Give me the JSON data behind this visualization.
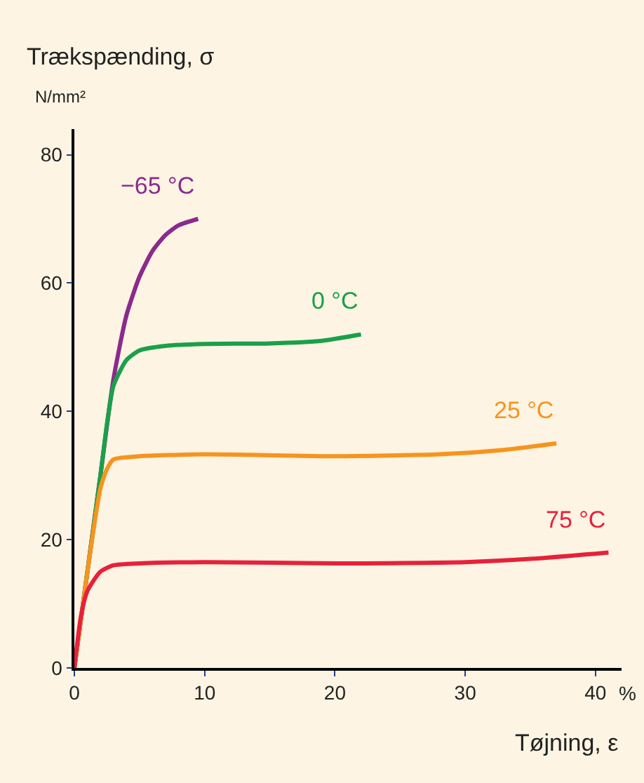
{
  "chart_data": {
    "type": "line",
    "ylabel": "Trækspænding, σ",
    "xlabel": "Tøjning, ε",
    "annotations": [
      "N/mm²",
      "%"
    ],
    "xlim": [
      0,
      42
    ],
    "ylim": [
      0,
      84
    ],
    "xticks": [
      0,
      10,
      20,
      30,
      40
    ],
    "yticks": [
      0,
      20,
      40,
      60,
      80
    ],
    "grid": false,
    "legend": false,
    "marker": "none",
    "line_style": "solid",
    "series": [
      {
        "name": "−65 °C",
        "color": "#8b2a8c",
        "x": [
          0,
          1,
          2,
          3,
          4,
          5,
          6,
          7,
          8,
          9.5
        ],
        "values": [
          0,
          15,
          30,
          45,
          55,
          61,
          65,
          67.5,
          69,
          70
        ]
      },
      {
        "name": "0 °C",
        "color": "#1aa04a",
        "x": [
          0,
          1,
          2,
          2.5,
          3,
          4,
          5,
          7,
          10,
          15,
          19,
          22
        ],
        "values": [
          0,
          15,
          30,
          38,
          44,
          48,
          49.5,
          50.2,
          50.5,
          50.6,
          51,
          52
        ]
      },
      {
        "name": "25 °C",
        "color": "#f7941d",
        "x": [
          0,
          1,
          2,
          2.5,
          3,
          5,
          10,
          20,
          28,
          33,
          37
        ],
        "values": [
          0,
          15,
          28,
          31,
          32.5,
          33,
          33.3,
          33,
          33.3,
          34,
          35
        ]
      },
      {
        "name": "75 °C",
        "color": "#e8203a",
        "x": [
          0,
          0.5,
          1,
          2,
          3,
          5,
          10,
          20,
          30,
          35,
          41
        ],
        "values": [
          0,
          8,
          12,
          15,
          16,
          16.3,
          16.5,
          16.3,
          16.5,
          17,
          18
        ]
      }
    ]
  }
}
